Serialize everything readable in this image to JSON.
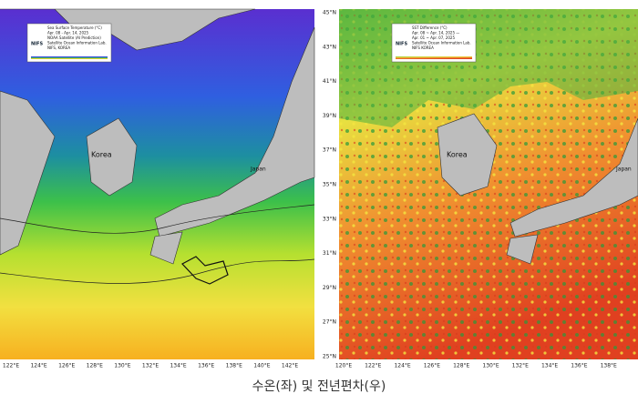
{
  "caption": "수온(좌) 및 전년편차(우)",
  "left_map": {
    "legend": {
      "lines": [
        "Sea Surface Temperature (°C)",
        "Apr. 08 - Apr. 14, 2025",
        "NOAA Satellite (AI Prediction)",
        "Satellite Ocean Information Lab.",
        "NIFS, KOREA"
      ],
      "logo": "NIFS"
    },
    "place_labels": [
      "Korea",
      "Japan"
    ],
    "lon_ticks": [
      "122°E",
      "124°E",
      "126°E",
      "128°E",
      "130°E",
      "132°E",
      "134°E",
      "136°E",
      "138°E",
      "140°E",
      "142°E"
    ]
  },
  "right_map": {
    "legend": {
      "lines": [
        "SST Difference (°C)",
        "Apr. 08 ~ Apr. 14, 2025 —",
        "Apr. 01 ~ Apr. 07, 2025",
        "Satellite Ocean Information Lab.",
        "NIFS KOREA"
      ],
      "logo": "NIFS"
    },
    "place_labels": [
      "Korea",
      "Japan"
    ],
    "lon_ticks": [
      "120°E",
      "122°E",
      "124°E",
      "126°E",
      "128°E",
      "130°E",
      "132°E",
      "134°E",
      "136°E",
      "138°E"
    ],
    "lat_ticks": [
      "45°N",
      "43°N",
      "41°N",
      "39°N",
      "37°N",
      "35°N",
      "33°N",
      "31°N",
      "29°N",
      "27°N",
      "25°N"
    ]
  }
}
